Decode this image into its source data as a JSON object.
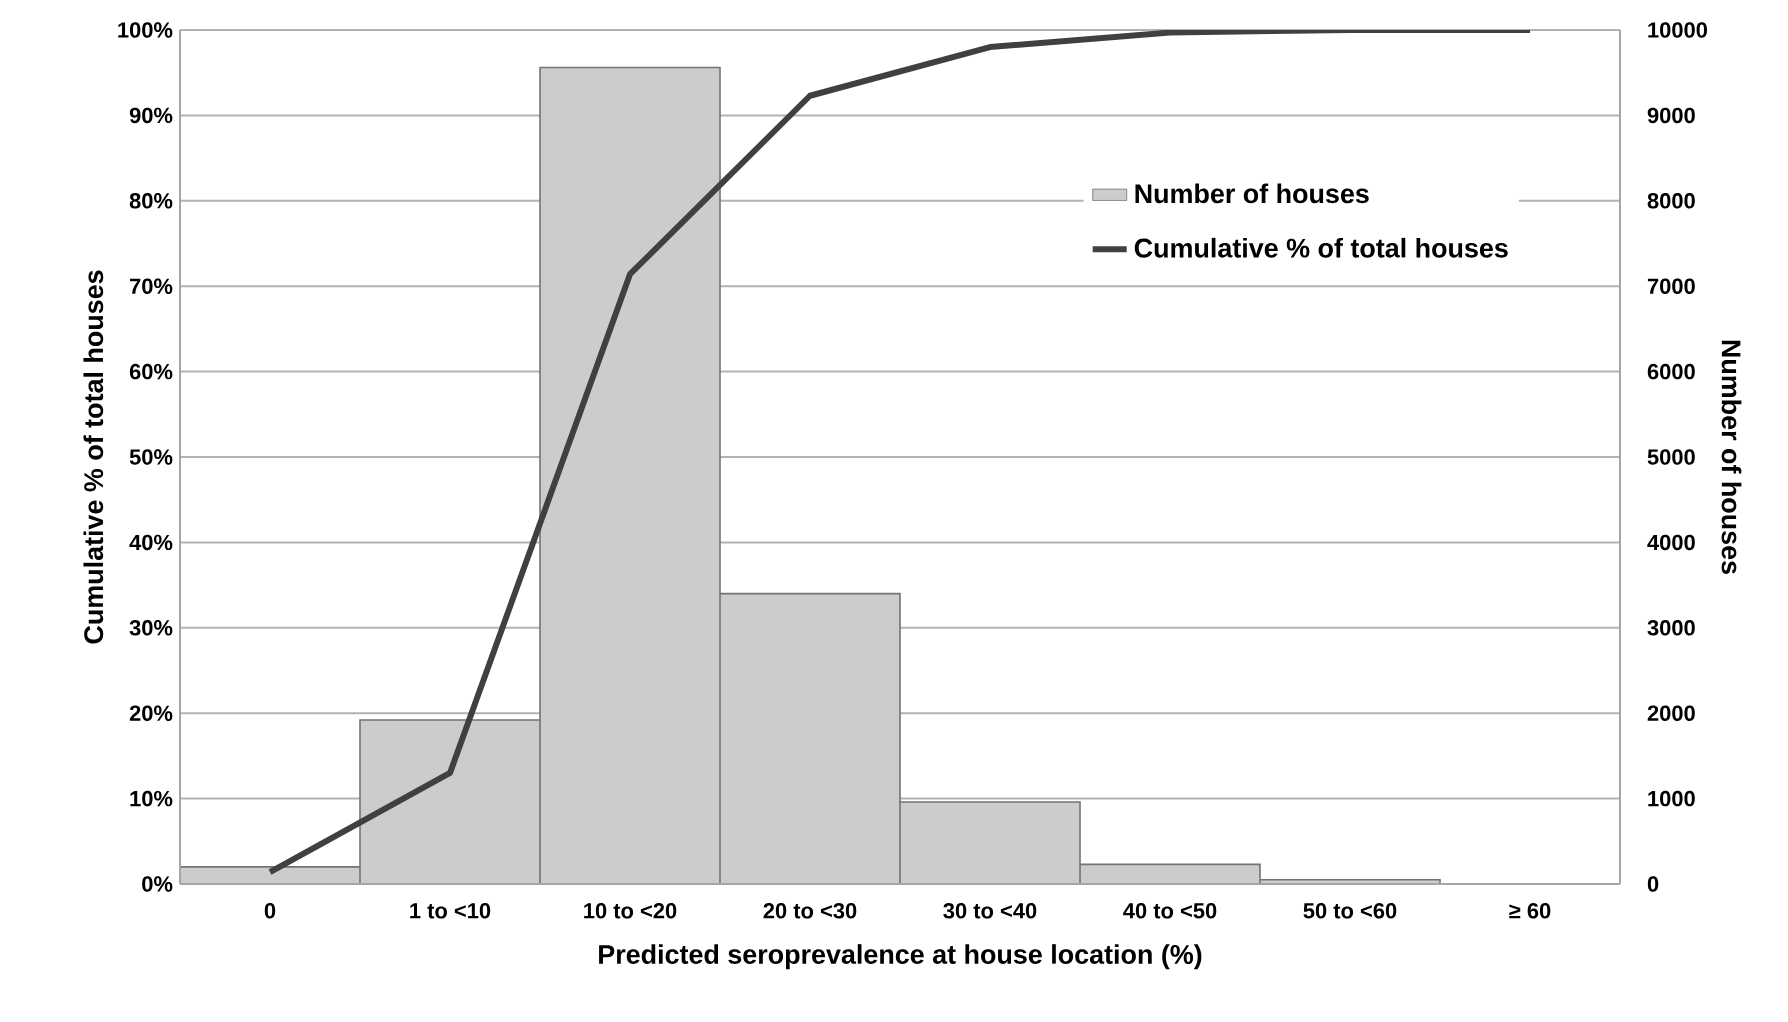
{
  "chart_data": {
    "type": "bar",
    "xlabel": "Predicted seroprevalence at house location (%)",
    "ylabel": "Cumulative % of total houses",
    "y2label": "Number of houses",
    "categories": [
      "0",
      "1 to <10",
      "10 to <20",
      "20 to <30",
      "30 to <40",
      "40 to <50",
      "50 to <60",
      "≥ 60"
    ],
    "series": [
      {
        "name": "Number of houses",
        "axis": "y2",
        "color": "#cccccc",
        "values": [
          200,
          1920,
          9560,
          3400,
          960,
          230,
          50,
          null
        ]
      },
      {
        "name": "Cumulative % of total houses",
        "type": "line",
        "color": "#404040",
        "values": [
          1.4,
          13,
          71.4,
          92.3,
          98,
          99.7,
          100,
          100
        ]
      }
    ],
    "ylim": [
      0,
      100
    ],
    "yticks": [
      {
        "value": 0,
        "label": "0%"
      },
      {
        "value": 10,
        "label": "10%"
      },
      {
        "value": 20,
        "label": "20%"
      },
      {
        "value": 30,
        "label": "30%"
      },
      {
        "value": 40,
        "label": "40%"
      },
      {
        "value": 50,
        "label": "50%"
      },
      {
        "value": 60,
        "label": "60%"
      },
      {
        "value": 70,
        "label": "70%"
      },
      {
        "value": 80,
        "label": "80%"
      },
      {
        "value": 90,
        "label": "90%"
      },
      {
        "value": 100,
        "label": "100%"
      }
    ],
    "y2lim": [
      0,
      10000
    ],
    "y2ticks": [
      0,
      1000,
      2000,
      3000,
      4000,
      5000,
      6000,
      7000,
      8000,
      9000,
      10000
    ],
    "grid": "y",
    "legend": "top right"
  }
}
